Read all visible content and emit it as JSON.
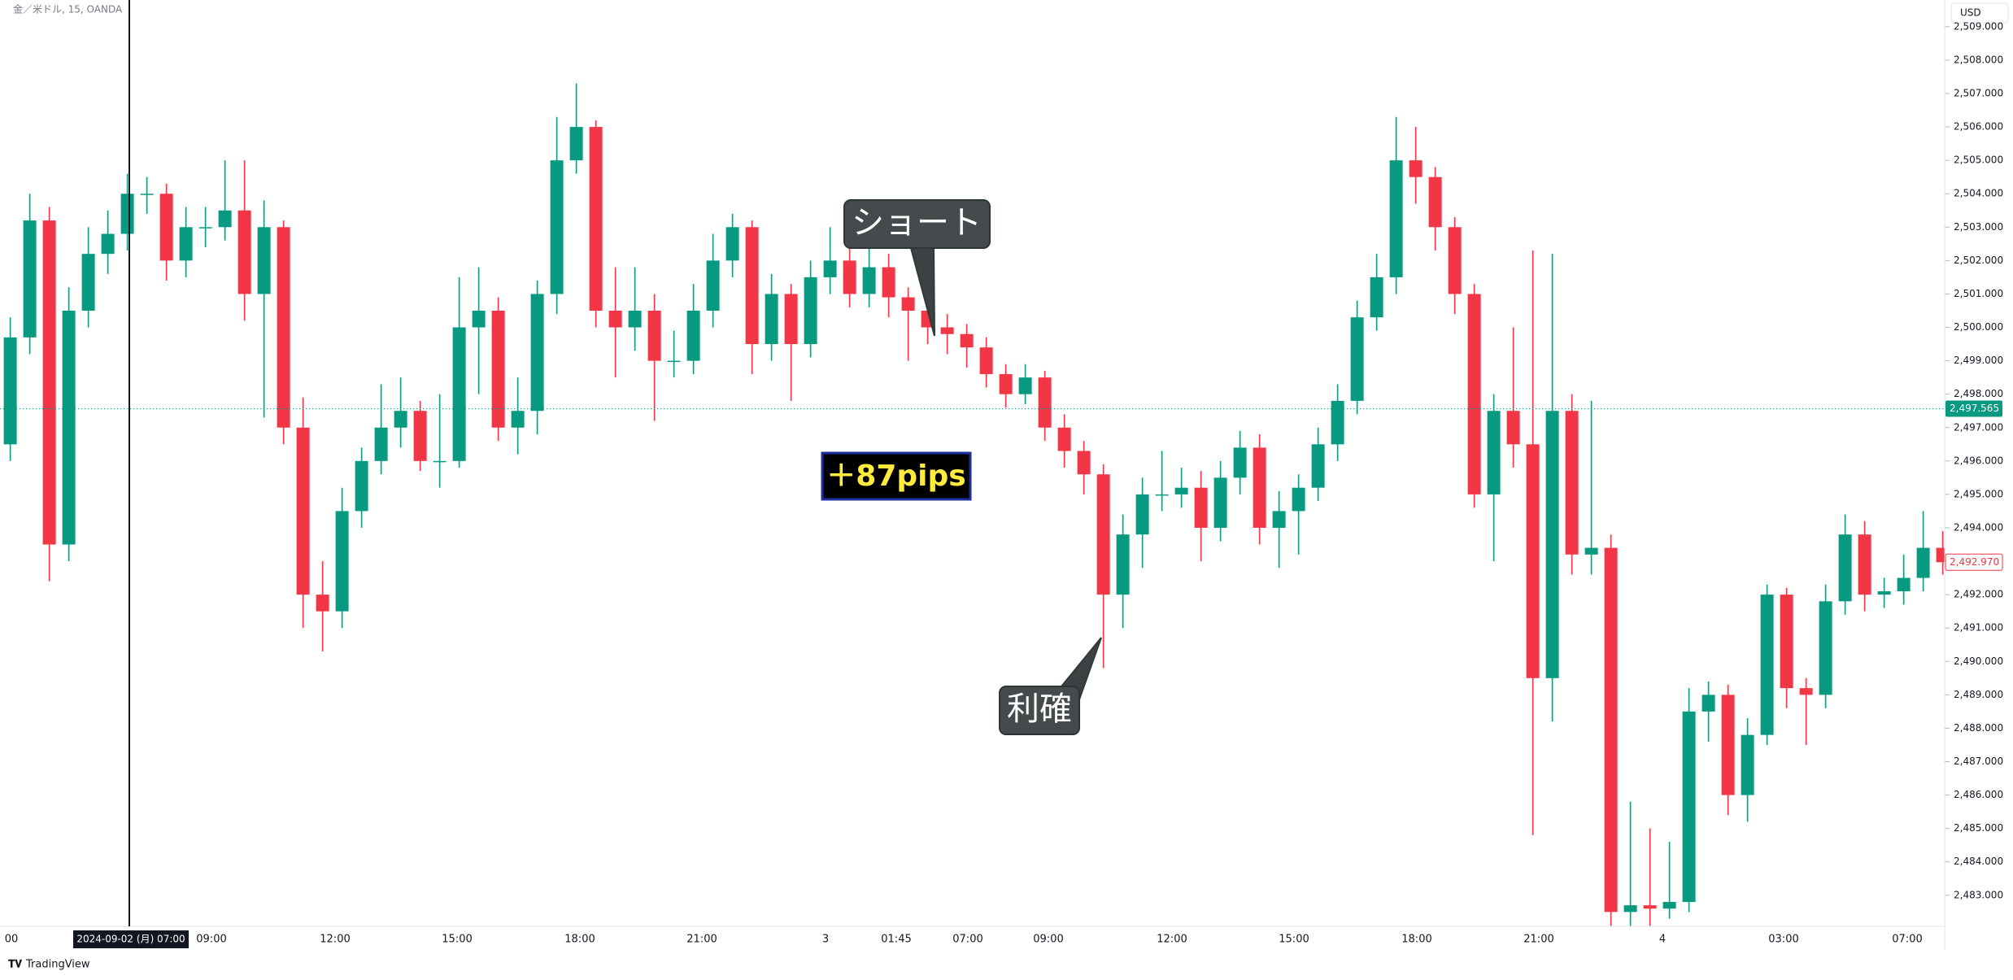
{
  "header": {
    "symbol": "金／米ドル, 15, OANDA",
    "currency": "USD"
  },
  "chart_data": {
    "type": "candlestick",
    "colors": {
      "up": "#089981",
      "down": "#f23645"
    },
    "candles": [
      [
        2496.5,
        2500.3,
        2496.0,
        2499.7
      ],
      [
        2499.7,
        2504.0,
        2499.2,
        2503.2
      ],
      [
        2503.2,
        2503.6,
        2492.4,
        2493.5
      ],
      [
        2493.5,
        2501.2,
        2493.0,
        2500.5
      ],
      [
        2500.5,
        2503.0,
        2500.0,
        2502.2
      ],
      [
        2502.2,
        2503.5,
        2501.6,
        2502.8
      ],
      [
        2502.8,
        2504.6,
        2502.3,
        2504.0
      ],
      [
        2504.0,
        2504.5,
        2503.4,
        2504.0
      ],
      [
        2504.0,
        2504.3,
        2501.4,
        2502.0
      ],
      [
        2502.0,
        2503.6,
        2501.5,
        2503.0
      ],
      [
        2503.0,
        2503.6,
        2502.4,
        2503.0
      ],
      [
        2503.0,
        2505.0,
        2502.6,
        2503.5
      ],
      [
        2503.5,
        2505.0,
        2500.2,
        2501.0
      ],
      [
        2501.0,
        2503.8,
        2497.3,
        2503.0
      ],
      [
        2503.0,
        2503.2,
        2496.5,
        2497.0
      ],
      [
        2497.0,
        2497.9,
        2491.0,
        2492.0
      ],
      [
        2492.0,
        2493.0,
        2490.3,
        2491.5
      ],
      [
        2491.5,
        2495.2,
        2491.0,
        2494.5
      ],
      [
        2494.5,
        2496.4,
        2494.0,
        2496.0
      ],
      [
        2496.0,
        2498.3,
        2495.6,
        2497.0
      ],
      [
        2497.0,
        2498.5,
        2496.4,
        2497.5
      ],
      [
        2497.5,
        2497.8,
        2495.7,
        2496.0
      ],
      [
        2496.0,
        2498.0,
        2495.2,
        2496.0
      ],
      [
        2496.0,
        2501.5,
        2495.8,
        2500.0
      ],
      [
        2500.0,
        2501.8,
        2498.0,
        2500.5
      ],
      [
        2500.5,
        2500.9,
        2496.6,
        2497.0
      ],
      [
        2497.0,
        2498.5,
        2496.2,
        2497.5
      ],
      [
        2497.5,
        2501.4,
        2496.8,
        2501.0
      ],
      [
        2501.0,
        2506.3,
        2500.4,
        2505.0
      ],
      [
        2505.0,
        2507.3,
        2504.6,
        2506.0
      ],
      [
        2506.0,
        2506.2,
        2500.0,
        2500.5
      ],
      [
        2500.5,
        2501.8,
        2498.5,
        2500.0
      ],
      [
        2500.0,
        2501.8,
        2499.3,
        2500.5
      ],
      [
        2500.5,
        2501.0,
        2497.2,
        2499.0
      ],
      [
        2499.0,
        2499.9,
        2498.5,
        2499.0
      ],
      [
        2499.0,
        2501.3,
        2498.6,
        2500.5
      ],
      [
        2500.5,
        2502.8,
        2500.0,
        2502.0
      ],
      [
        2502.0,
        2503.4,
        2501.5,
        2503.0
      ],
      [
        2503.0,
        2503.2,
        2498.6,
        2499.5
      ],
      [
        2499.5,
        2501.6,
        2499.0,
        2501.0
      ],
      [
        2501.0,
        2501.3,
        2497.8,
        2499.5
      ],
      [
        2499.5,
        2502.0,
        2499.1,
        2501.5
      ],
      [
        2501.5,
        2503.0,
        2501.0,
        2502.0
      ],
      [
        2502.0,
        2502.5,
        2500.6,
        2501.0
      ],
      [
        2501.0,
        2502.4,
        2500.6,
        2501.8
      ],
      [
        2501.8,
        2502.2,
        2500.3,
        2500.9
      ],
      [
        2500.9,
        2501.2,
        2499.0,
        2500.5
      ],
      [
        2500.5,
        2500.8,
        2499.5,
        2500.0
      ],
      [
        2500.0,
        2500.4,
        2499.2,
        2499.8
      ],
      [
        2499.8,
        2500.1,
        2498.8,
        2499.4
      ],
      [
        2499.4,
        2499.7,
        2498.2,
        2498.6
      ],
      [
        2498.6,
        2498.9,
        2497.6,
        2498.0
      ],
      [
        2498.0,
        2498.9,
        2497.7,
        2498.5
      ],
      [
        2498.5,
        2498.7,
        2496.6,
        2497.0
      ],
      [
        2497.0,
        2497.4,
        2495.8,
        2496.3
      ],
      [
        2496.3,
        2496.6,
        2495.0,
        2495.6
      ],
      [
        2495.6,
        2495.9,
        2489.8,
        2492.0
      ],
      [
        2492.0,
        2494.4,
        2491.0,
        2493.8
      ],
      [
        2493.8,
        2495.5,
        2492.8,
        2495.0
      ],
      [
        2495.0,
        2496.3,
        2494.5,
        2495.0
      ],
      [
        2495.0,
        2495.8,
        2494.6,
        2495.2
      ],
      [
        2495.2,
        2495.7,
        2493.0,
        2494.0
      ],
      [
        2494.0,
        2496.0,
        2493.6,
        2495.5
      ],
      [
        2495.5,
        2496.9,
        2495.0,
        2496.4
      ],
      [
        2496.4,
        2496.8,
        2493.5,
        2494.0
      ],
      [
        2494.0,
        2495.1,
        2492.8,
        2494.5
      ],
      [
        2494.5,
        2495.6,
        2493.2,
        2495.2
      ],
      [
        2495.2,
        2497.0,
        2494.8,
        2496.5
      ],
      [
        2496.5,
        2498.3,
        2496.0,
        2497.8
      ],
      [
        2497.8,
        2500.8,
        2497.4,
        2500.3
      ],
      [
        2500.3,
        2502.2,
        2499.9,
        2501.5
      ],
      [
        2501.5,
        2506.3,
        2501.0,
        2505.0
      ],
      [
        2505.0,
        2506.0,
        2503.7,
        2504.5
      ],
      [
        2504.5,
        2504.8,
        2502.3,
        2503.0
      ],
      [
        2503.0,
        2503.3,
        2500.4,
        2501.0
      ],
      [
        2501.0,
        2501.3,
        2494.6,
        2495.0
      ],
      [
        2495.0,
        2498.0,
        2493.0,
        2497.5
      ],
      [
        2497.5,
        2500.0,
        2495.8,
        2496.5
      ],
      [
        2496.5,
        2502.3,
        2484.8,
        2489.5
      ],
      [
        2489.5,
        2502.2,
        2488.2,
        2497.5
      ],
      [
        2497.5,
        2498.0,
        2492.6,
        2493.2
      ],
      [
        2493.2,
        2497.8,
        2492.6,
        2493.4
      ],
      [
        2493.4,
        2493.8,
        2482.0,
        2482.5
      ],
      [
        2482.5,
        2485.8,
        2482.0,
        2482.7
      ],
      [
        2482.7,
        2485.0,
        2482.0,
        2482.6
      ],
      [
        2482.6,
        2484.6,
        2482.3,
        2482.8
      ],
      [
        2482.8,
        2489.2,
        2482.5,
        2488.5
      ],
      [
        2488.5,
        2489.4,
        2487.6,
        2489.0
      ],
      [
        2489.0,
        2489.3,
        2485.4,
        2486.0
      ],
      [
        2486.0,
        2488.3,
        2485.2,
        2487.8
      ],
      [
        2487.8,
        2492.3,
        2487.5,
        2492.0
      ],
      [
        2492.0,
        2492.2,
        2488.6,
        2489.2
      ],
      [
        2489.2,
        2489.5,
        2487.5,
        2489.0
      ],
      [
        2489.0,
        2492.3,
        2488.6,
        2491.8
      ],
      [
        2491.8,
        2494.4,
        2491.4,
        2493.8
      ],
      [
        2493.8,
        2494.2,
        2491.5,
        2492.0
      ],
      [
        2492.0,
        2492.5,
        2491.6,
        2492.1
      ],
      [
        2492.1,
        2493.2,
        2491.7,
        2492.5
      ],
      [
        2492.5,
        2494.5,
        2492.1,
        2493.4
      ],
      [
        2493.4,
        2493.9,
        2492.6,
        2492.97
      ]
    ],
    "ylim": [
      2482.07,
      2509.8
    ],
    "yticks": [
      {
        "value": 2483,
        "label": "2,483.000"
      },
      {
        "value": 2484,
        "label": "2,484.000"
      },
      {
        "value": 2485,
        "label": "2,485.000"
      },
      {
        "value": 2486,
        "label": "2,486.000"
      },
      {
        "value": 2487,
        "label": "2,487.000"
      },
      {
        "value": 2488,
        "label": "2,488.000"
      },
      {
        "value": 2489,
        "label": "2,489.000"
      },
      {
        "value": 2490,
        "label": "2,490.000"
      },
      {
        "value": 2491,
        "label": "2,491.000"
      },
      {
        "value": 2492,
        "label": "2,492.000"
      },
      {
        "value": 2493,
        "label": "2,493.000"
      },
      {
        "value": 2494,
        "label": "2,494.000"
      },
      {
        "value": 2495,
        "label": "2,495.000"
      },
      {
        "value": 2496,
        "label": "2,496.000"
      },
      {
        "value": 2497,
        "label": "2,497.000"
      },
      {
        "value": 2498,
        "label": "2,498.000"
      },
      {
        "value": 2499,
        "label": "2,499.000"
      },
      {
        "value": 2500,
        "label": "2,500.000"
      },
      {
        "value": 2501,
        "label": "2,501.000"
      },
      {
        "value": 2502,
        "label": "2,502.000"
      },
      {
        "value": 2503,
        "label": "2,503.000"
      },
      {
        "value": 2504,
        "label": "2,504.000"
      },
      {
        "value": 2505,
        "label": "2,505.000"
      },
      {
        "value": 2506,
        "label": "2,506.000"
      },
      {
        "value": 2507,
        "label": "2,507.000"
      },
      {
        "value": 2508,
        "label": "2,508.000"
      },
      {
        "value": 2509,
        "label": "2,509.000"
      }
    ],
    "x_labels": [
      "00",
      "09:00",
      "12:00",
      "15:00",
      "18:00",
      "21:00",
      "3",
      "01:45",
      "07:00",
      "09:00",
      "12:00",
      "15:00",
      "18:00",
      "21:00",
      "4",
      "03:00",
      "07:00"
    ],
    "crosshair_label": "2024-09-02 (月)   07:00",
    "price_line": {
      "value": 2497.565,
      "label": "2,497.565"
    },
    "last_price": {
      "value": 2492.97,
      "label": "2,492.970"
    },
    "annotations": [
      "ショート",
      "利確",
      "＋87pips"
    ]
  },
  "footer": {
    "brand": "TradingView"
  }
}
